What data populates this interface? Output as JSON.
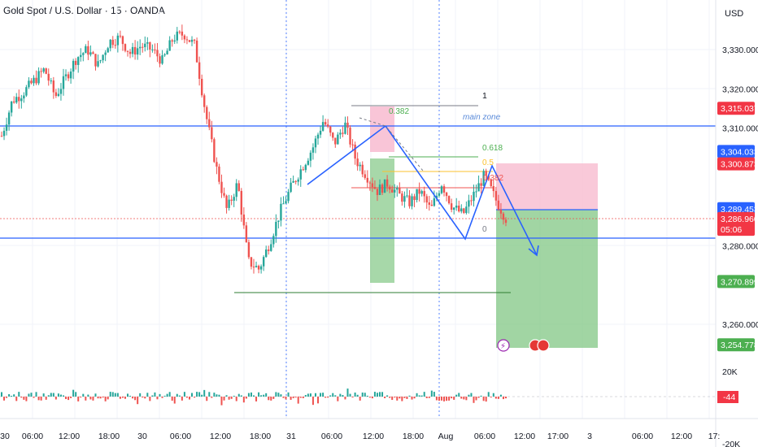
{
  "header": {
    "title": "Gold Spot / U.S. Dollar · 15 · OANDA",
    "currency": "USD"
  },
  "colors": {
    "up": "#26a69a",
    "down": "#ef5350",
    "blue_line": "#2962ff",
    "zone_green": "#81c784",
    "zone_red": "#f8bbd0"
  },
  "chart_data": {
    "type": "candlestick",
    "price_axis": {
      "ticks": [
        "3,330.000",
        "3,320.000",
        "3,310.000",
        "3,280.000",
        "3,260.000"
      ],
      "range": [
        3250,
        3340
      ]
    },
    "time_axis": {
      "ticks": [
        "30",
        "06:00",
        "12:00",
        "18:00",
        "30",
        "06:00",
        "12:00",
        "18:00",
        "31",
        "06:00",
        "12:00",
        "18:00",
        "Aug",
        "06:00",
        "12:00",
        "17:00",
        "3",
        "06:00",
        "12:00",
        "17:"
      ]
    },
    "price_tags": [
      {
        "value": "3,315.037",
        "price": 3315.037,
        "color": "#f23645"
      },
      {
        "value": "3,304.033",
        "price": 3304.033,
        "color": "#2962ff"
      },
      {
        "value": "3,300.873",
        "price": 3300.873,
        "color": "#f23645"
      },
      {
        "value": "3,289.453",
        "price": 3289.453,
        "color": "#2962ff"
      },
      {
        "value": "3,286.960",
        "price": 3286.96,
        "color": "#f23645"
      },
      {
        "value": "05:06",
        "price": 3284.2,
        "color": "#f23645"
      },
      {
        "value": "3,270.899",
        "price": 3270.899,
        "color": "#4caf50"
      },
      {
        "value": "3,254.778",
        "price": 3254.778,
        "color": "#4caf50"
      }
    ],
    "volume_axis": {
      "ticks": [
        "20K",
        "-20K"
      ],
      "last_value": "-44"
    },
    "annotations": {
      "zone_label": "main zone",
      "fib_labels": [
        "1",
        "0.618",
        "0",
        "0.382",
        "0.5",
        "0.382"
      ]
    },
    "horizontal_levels": [
      3310.5,
      3281.5
    ],
    "low_level": 3273.2,
    "trade": {
      "entry": 3289.453,
      "stop": 3300.873,
      "target": 3254.778
    },
    "swing_path": [
      3288,
      3316,
      3312,
      3291,
      3300,
      3286,
      3304,
      3290
    ],
    "path_shape": [
      3308,
      3317,
      3319,
      3322,
      3325,
      3318,
      3323,
      3328,
      3330,
      3326,
      3332,
      3333,
      3329,
      3331,
      3330,
      3327,
      3333,
      3334,
      3331,
      3314,
      3300,
      3289,
      3296,
      3276,
      3274,
      3281,
      3289,
      3295,
      3300,
      3305,
      3312,
      3306,
      3311,
      3302,
      3298,
      3294,
      3296,
      3293,
      3291,
      3294,
      3289,
      3296,
      3290,
      3288,
      3293,
      3298,
      3292,
      3287
    ]
  }
}
